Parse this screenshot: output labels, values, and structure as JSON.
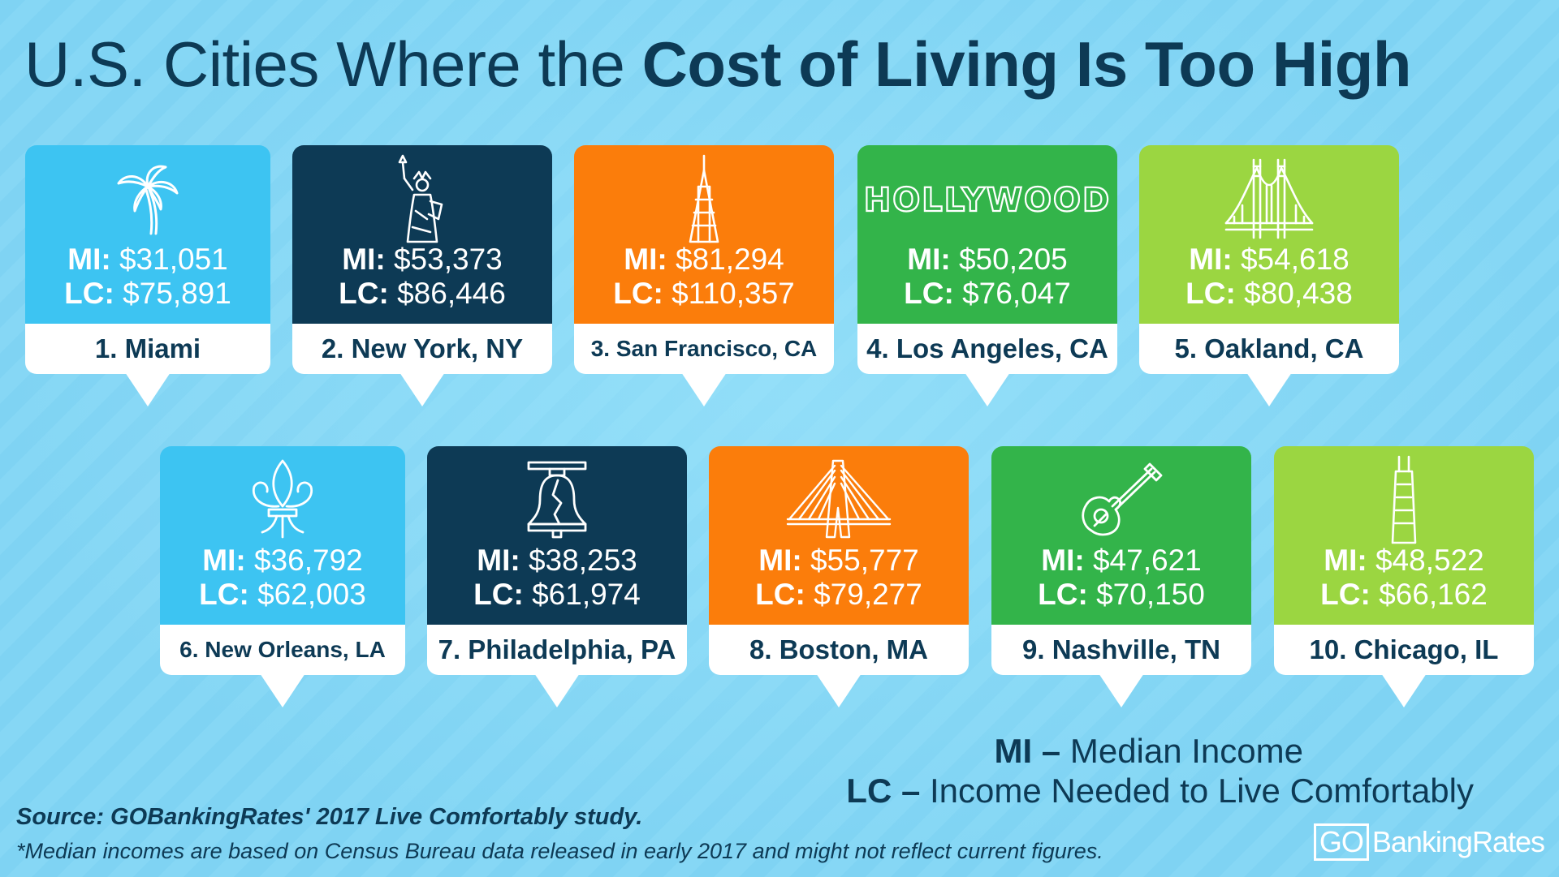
{
  "title": {
    "light": "U.S. Cities Where the",
    "bold": "Cost of Living Is Too High"
  },
  "stat_keys": {
    "mi": "MI:",
    "lc": "LC:"
  },
  "cities": [
    {
      "rank_label": "1. Miami",
      "mi": "$31,051",
      "lc": "$75,891",
      "color": "#3dc4f2",
      "icon": "palm-tree-icon"
    },
    {
      "rank_label": "2. New York, NY",
      "mi": "$53,373",
      "lc": "$86,446",
      "color": "#0d3a55",
      "icon": "statue-of-liberty-icon"
    },
    {
      "rank_label": "3. San Francisco, CA",
      "mi": "$81,294",
      "lc": "$110,357",
      "color": "#fb7d0b",
      "icon": "transamerica-pyramid-icon"
    },
    {
      "rank_label": "4. Los Angeles, CA",
      "mi": "$50,205",
      "lc": "$76,047",
      "color": "#33b44a",
      "icon": "hollywood-sign-icon",
      "icon_text": "HOLLYWOOD"
    },
    {
      "rank_label": "5. Oakland, CA",
      "mi": "$54,618",
      "lc": "$80,438",
      "color": "#9bd641",
      "icon": "suspension-bridge-icon"
    },
    {
      "rank_label": "6. New Orleans, LA",
      "mi": "$36,792",
      "lc": "$62,003",
      "color": "#3dc4f2",
      "icon": "fleur-de-lis-icon"
    },
    {
      "rank_label": "7. Philadelphia, PA",
      "mi": "$38,253",
      "lc": "$61,974",
      "color": "#0d3a55",
      "icon": "liberty-bell-icon"
    },
    {
      "rank_label": "8. Boston, MA",
      "mi": "$55,777",
      "lc": "$79,277",
      "color": "#fb7d0b",
      "icon": "zakim-bridge-icon"
    },
    {
      "rank_label": "9. Nashville, TN",
      "mi": "$47,621",
      "lc": "$70,150",
      "color": "#33b44a",
      "icon": "guitar-icon"
    },
    {
      "rank_label": "10. Chicago, IL",
      "mi": "$48,522",
      "lc": "$66,162",
      "color": "#9bd641",
      "icon": "skyscraper-icon"
    }
  ],
  "legend": {
    "mi_key": "MI –",
    "mi_text": "Median Income",
    "lc_key": "LC –",
    "lc_text": "Income Needed to Live Comfortably"
  },
  "source": "Source: GOBankingRates' 2017 Live Comfortably study.",
  "note": "*Median incomes are based on Census Bureau data released in early 2017 and might not reflect current figures.",
  "brand": {
    "go": "GO",
    "rest": "BankingRates"
  }
}
